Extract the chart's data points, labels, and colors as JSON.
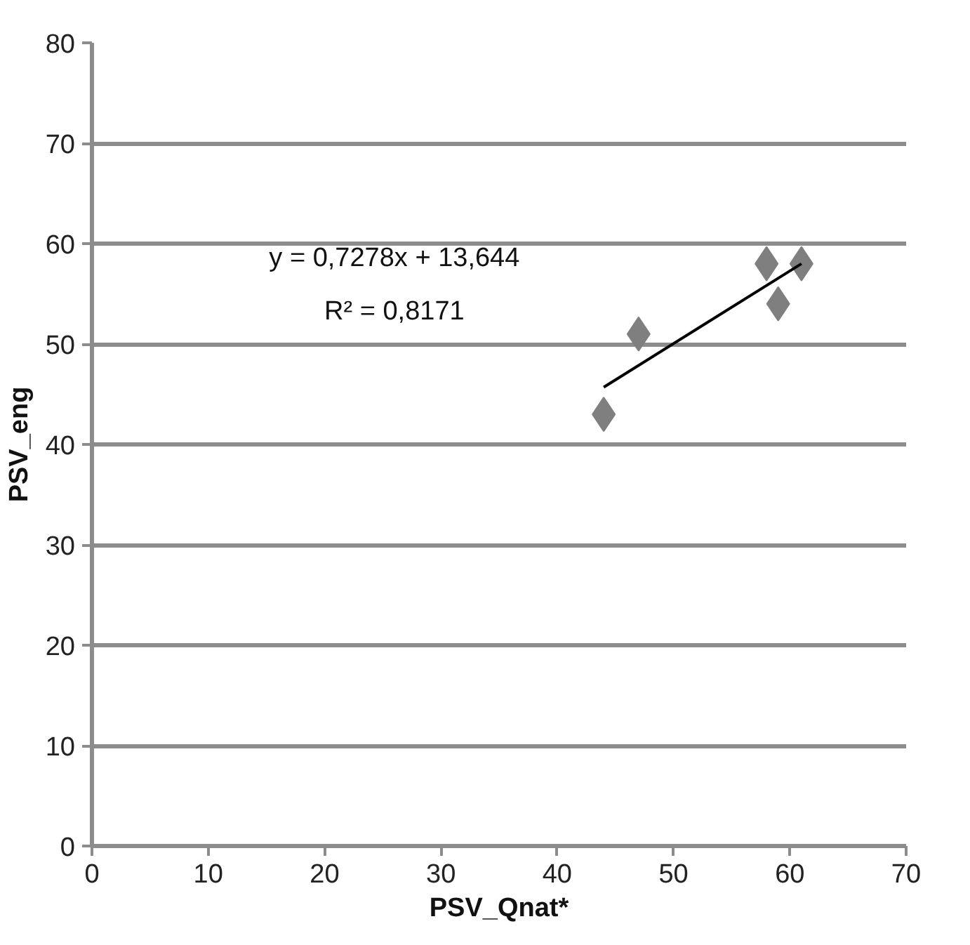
{
  "chart_data": {
    "type": "scatter",
    "xlabel": "PSV_Qnat*",
    "ylabel": "PSV_eng",
    "annotations": [
      "y = 0,7278x + 13,644",
      "R² = 0,8171"
    ],
    "xlim": [
      0,
      70
    ],
    "xticks": [
      0,
      10,
      20,
      30,
      40,
      50,
      60,
      70
    ],
    "ylim": [
      0,
      80
    ],
    "yticks": [
      0,
      10,
      20,
      30,
      40,
      50,
      60,
      70,
      80
    ],
    "grid": "y",
    "marker": "diamond",
    "series": [
      {
        "color": "#7f7f7f",
        "x": [
          44,
          47,
          58,
          59,
          61
        ],
        "values": [
          43,
          51,
          58,
          54,
          58
        ]
      },
      {
        "type": "line",
        "marker": "none",
        "color": "#000000",
        "x": [
          44,
          61
        ],
        "values": [
          45.7,
          58.0
        ]
      }
    ]
  }
}
